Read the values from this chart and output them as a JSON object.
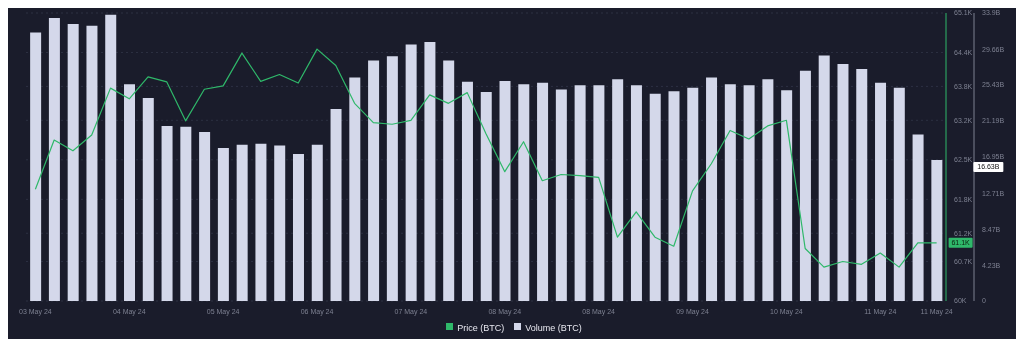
{
  "chart_data": {
    "type": "bar",
    "categories": [
      "03 May 24",
      null,
      null,
      null,
      null,
      "04 May 24",
      null,
      null,
      null,
      null,
      "05 May 24",
      null,
      null,
      null,
      null,
      "06 May 24",
      null,
      null,
      null,
      null,
      "07 May 24",
      null,
      null,
      null,
      null,
      "08 May 24",
      null,
      null,
      null,
      null,
      "08 May 24",
      null,
      null,
      null,
      null,
      "09 May 24",
      null,
      null,
      null,
      null,
      "10 May 24",
      null,
      null,
      null,
      null,
      "11 May 24",
      null,
      null,
      "11 May 24"
    ],
    "series": [
      {
        "name": "Price (BTC)",
        "type": "line",
        "axis": "y",
        "color": "#2fb86a",
        "values": [
          61980,
          62850,
          62660,
          62940,
          63770,
          63580,
          63970,
          63880,
          63190,
          63750,
          63810,
          64390,
          63890,
          64010,
          63860,
          64460,
          64170,
          63500,
          63160,
          63130,
          63200,
          63650,
          63500,
          63690,
          62960,
          62290,
          62820,
          62130,
          62240,
          62220,
          62190,
          61130,
          61580,
          61130,
          60970,
          61950,
          62430,
          63020,
          62870,
          63100,
          63200,
          60930,
          60600,
          60700,
          60650,
          60850,
          60600,
          61030,
          61030
        ]
      },
      {
        "name": "Volume (BTC)",
        "axis": "y2",
        "color": "#d4d8ea",
        "values": [
          31.6,
          33.3,
          32.6,
          32.4,
          33.7,
          25.5,
          23.9,
          20.6,
          20.5,
          19.9,
          18.0,
          18.4,
          18.5,
          18.3,
          17.3,
          18.4,
          22.6,
          26.3,
          28.3,
          28.8,
          30.2,
          30.5,
          28.3,
          25.8,
          24.6,
          25.9,
          25.5,
          25.7,
          24.9,
          25.4,
          25.4,
          26.1,
          25.4,
          24.4,
          24.7,
          25.1,
          26.3,
          25.5,
          25.4,
          26.1,
          24.8,
          27.1,
          28.9,
          27.9,
          27.3,
          25.7,
          25.1,
          19.6,
          16.6
        ]
      }
    ],
    "ylim": [
      60000,
      65100
    ],
    "yticks": [
      {
        "value": 60000,
        "label": "60K"
      },
      {
        "value": 60700,
        "label": "60.7K"
      },
      {
        "value": 61200,
        "label": "61.2K"
      },
      {
        "value": 61800,
        "label": "61.8K"
      },
      {
        "value": 62500,
        "label": "62.5K"
      },
      {
        "value": 63200,
        "label": "63.2K"
      },
      {
        "value": 63800,
        "label": "63.8K"
      },
      {
        "value": 64400,
        "label": "64.4K"
      },
      {
        "value": 65100,
        "label": "65.1K"
      }
    ],
    "y2lim": [
      0,
      33.9
    ],
    "y2ticks": [
      0,
      {
        "value": 4.23,
        "label": "4.23B"
      },
      {
        "value": 8.47,
        "label": "8.47B"
      },
      {
        "value": 12.71,
        "label": "12.71B"
      },
      {
        "value": 16.95,
        "label": "16.95B"
      },
      {
        "value": 21.19,
        "label": "21.19B"
      },
      {
        "value": 25.43,
        "label": "25.43B"
      },
      {
        "value": 29.66,
        "label": "29.66B"
      },
      {
        "value": 33.9,
        "label": "33.9B"
      }
    ],
    "annotations": [
      "61.1K",
      "16.63B"
    ],
    "legend": "bottom",
    "grid": "y"
  }
}
